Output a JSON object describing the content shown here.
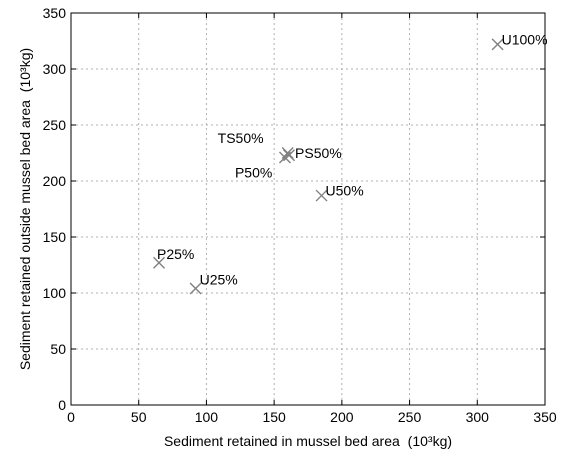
{
  "chart_data": {
    "type": "scatter",
    "title": "",
    "xlabel": "Sediment retained in mussel bed area",
    "xlabel_unit": "(10³kg)",
    "ylabel": "Sediment retained outside mussel bed area",
    "ylabel_unit": "(10³kg)",
    "xlim": [
      0,
      350
    ],
    "ylim": [
      0,
      350
    ],
    "xticks": [
      0,
      50,
      100,
      150,
      200,
      250,
      300,
      350
    ],
    "yticks": [
      0,
      50,
      100,
      150,
      200,
      250,
      300,
      350
    ],
    "grid": true,
    "marker_color": "#808080",
    "points": [
      {
        "label": "U100%",
        "x": 315,
        "y": 322
      },
      {
        "label": "TS50%",
        "x": 160,
        "y": 225
      },
      {
        "label": "PS50%",
        "x": 161,
        "y": 223
      },
      {
        "label": "P50%",
        "x": 158,
        "y": 221
      },
      {
        "label": "U50%",
        "x": 185,
        "y": 187
      },
      {
        "label": "P25%",
        "x": 65,
        "y": 127
      },
      {
        "label": "U25%",
        "x": 92,
        "y": 104
      }
    ]
  }
}
